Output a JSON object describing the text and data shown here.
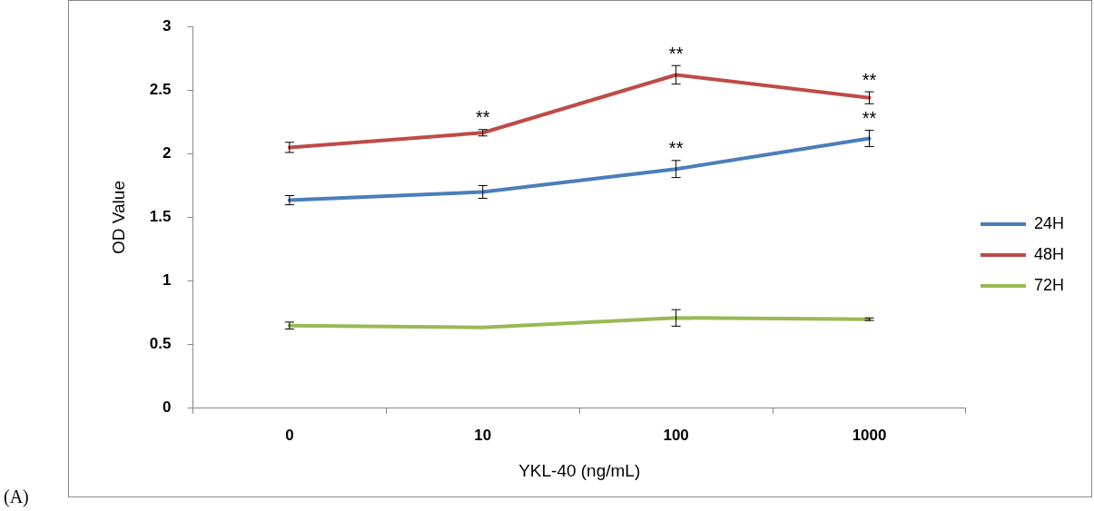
{
  "chart_data": {
    "type": "line",
    "xlabel": "YKL-40 (ng/mL)",
    "ylabel": "OD Value",
    "categories": [
      "0",
      "10",
      "100",
      "1000"
    ],
    "series": [
      {
        "name": "24H",
        "color": "#4a7ebb",
        "values": [
          1.635,
          1.7,
          1.88,
          2.12
        ],
        "errors": [
          0.036,
          0.05,
          0.067,
          0.064
        ]
      },
      {
        "name": "48H",
        "color": "#be4b48",
        "values": [
          2.05,
          2.165,
          2.62,
          2.44
        ],
        "errors": [
          0.04,
          0.025,
          0.073,
          0.047
        ]
      },
      {
        "name": "72H",
        "color": "#98b954",
        "values": [
          0.65,
          0.635,
          0.71,
          0.7
        ],
        "errors": [
          0.027,
          null,
          0.065,
          0.01
        ]
      }
    ],
    "ylim": [
      0,
      3
    ],
    "yticks": [
      0,
      0.5,
      1,
      1.5,
      2,
      2.5,
      3
    ],
    "grid": false,
    "legend": "right",
    "line_style": "solid",
    "annotations": [
      {
        "text": "**",
        "x": "10",
        "y": 2.165
      },
      {
        "text": "**",
        "x": "100",
        "y": 2.62
      },
      {
        "text": "**",
        "x": "1000",
        "y": 2.44
      },
      {
        "text": "**",
        "x": "100",
        "y": 1.88
      },
      {
        "text": "**",
        "x": "1000",
        "y": 2.12
      },
      "(A)"
    ]
  }
}
